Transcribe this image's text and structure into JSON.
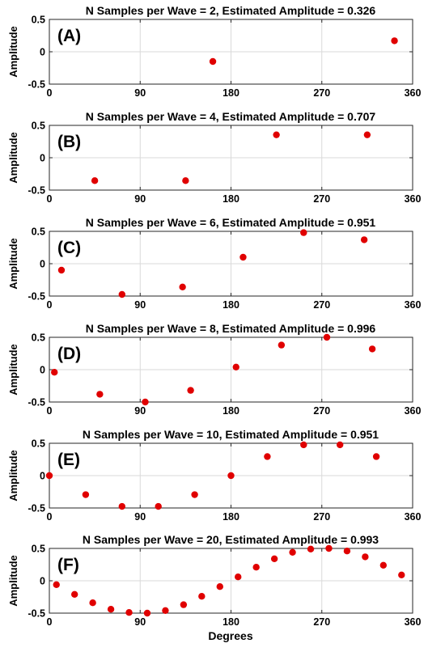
{
  "chart_data": [
    {
      "type": "scatter",
      "panel_label": "(A)",
      "title": "N Samples per Wave = 2, Estimated Amplitude = 0.326",
      "ylabel": "Amplitude",
      "xlim": [
        0,
        360
      ],
      "ylim": [
        -0.5,
        0.5
      ],
      "xticks": [
        "0",
        "90",
        "180",
        "270",
        "360"
      ],
      "yticks": [
        "0.5",
        "0",
        "-0.5"
      ],
      "grid": true,
      "marker_color": "#e00000",
      "x": [
        162,
        342
      ],
      "y": [
        -0.15,
        0.17
      ]
    },
    {
      "type": "scatter",
      "panel_label": "(B)",
      "title": "N Samples per Wave = 4, Estimated Amplitude = 0.707",
      "ylabel": "Amplitude",
      "xlim": [
        0,
        360
      ],
      "ylim": [
        -0.5,
        0.5
      ],
      "xticks": [
        "0",
        "90",
        "180",
        "270",
        "360"
      ],
      "yticks": [
        "0.5",
        "0",
        "-0.5"
      ],
      "grid": true,
      "marker_color": "#e00000",
      "x": [
        45,
        135,
        225,
        315
      ],
      "y": [
        -0.354,
        -0.354,
        0.354,
        0.354
      ]
    },
    {
      "type": "scatter",
      "panel_label": "(C)",
      "title": "N Samples per Wave = 6, Estimated Amplitude = 0.951",
      "ylabel": "Amplitude",
      "xlim": [
        0,
        360
      ],
      "ylim": [
        -0.5,
        0.5
      ],
      "xticks": [
        "0",
        "90",
        "180",
        "270",
        "360"
      ],
      "yticks": [
        "0.5",
        "0",
        "-0.5"
      ],
      "grid": true,
      "marker_color": "#e00000",
      "x": [
        12,
        72,
        132,
        192,
        252,
        312
      ],
      "y": [
        -0.1,
        -0.475,
        -0.36,
        0.1,
        0.48,
        0.37
      ]
    },
    {
      "type": "scatter",
      "panel_label": "(D)",
      "title": "N Samples per Wave = 8, Estimated Amplitude = 0.996",
      "ylabel": "Amplitude",
      "xlim": [
        0,
        360
      ],
      "ylim": [
        -0.5,
        0.5
      ],
      "xticks": [
        "0",
        "90",
        "180",
        "270",
        "360"
      ],
      "yticks": [
        "0.5",
        "0",
        "-0.5"
      ],
      "grid": true,
      "marker_color": "#e00000",
      "x": [
        5,
        50,
        95,
        140,
        185,
        230,
        275,
        320
      ],
      "y": [
        -0.04,
        -0.38,
        -0.5,
        -0.32,
        0.04,
        0.38,
        0.5,
        0.32
      ]
    },
    {
      "type": "scatter",
      "panel_label": "(E)",
      "title": "N Samples per Wave = 10, Estimated Amplitude = 0.951",
      "ylabel": "Amplitude",
      "xlim": [
        0,
        360
      ],
      "ylim": [
        -0.5,
        0.5
      ],
      "xticks": [
        "0",
        "90",
        "180",
        "270",
        "360"
      ],
      "yticks": [
        "0.5",
        "0",
        "-0.5"
      ],
      "grid": true,
      "marker_color": "#e00000",
      "x": [
        0,
        36,
        72,
        108,
        144,
        180,
        216,
        252,
        288,
        324
      ],
      "y": [
        0,
        -0.294,
        -0.476,
        -0.476,
        -0.294,
        0,
        0.294,
        0.476,
        0.476,
        0.294
      ]
    },
    {
      "type": "scatter",
      "panel_label": "(F)",
      "title": "N Samples per Wave = 20, Estimated Amplitude = 0.993",
      "ylabel": "Amplitude",
      "xlabel": "Degrees",
      "xlim": [
        0,
        360
      ],
      "ylim": [
        -0.5,
        0.5
      ],
      "xticks": [
        "0",
        "90",
        "180",
        "270",
        "360"
      ],
      "yticks": [
        "0.5",
        "0",
        "-0.5"
      ],
      "grid": true,
      "marker_color": "#e00000",
      "x": [
        7,
        25,
        43,
        61,
        79,
        97,
        115,
        133,
        151,
        169,
        187,
        205,
        223,
        241,
        259,
        277,
        295,
        313,
        331,
        349
      ],
      "y": [
        -0.06,
        -0.21,
        -0.34,
        -0.44,
        -0.49,
        -0.5,
        -0.46,
        -0.37,
        -0.24,
        -0.09,
        0.06,
        0.21,
        0.34,
        0.44,
        0.49,
        0.5,
        0.46,
        0.37,
        0.24,
        0.09
      ]
    }
  ]
}
